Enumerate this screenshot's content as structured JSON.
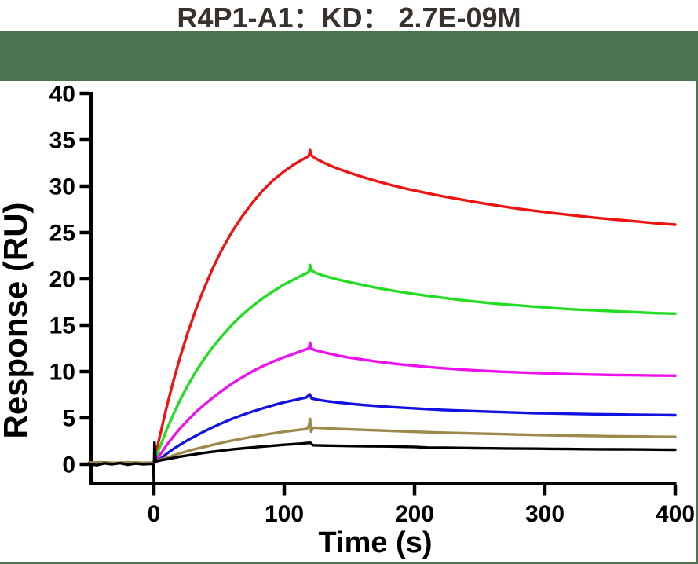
{
  "figure": {
    "title": "R4P1-A1：KD： 2.7E-09M",
    "colors": {
      "header_band": "#4a7350",
      "title_text": "#38322e",
      "axis": "#000000",
      "plot_background": "#ffffff"
    }
  },
  "chart_data": {
    "type": "line",
    "title": "R4P1-A1：KD： 2.7E-09M",
    "sample": "R4P1-A1",
    "kd": "2.7E-09M",
    "xlabel": "Time (s)",
    "ylabel": "Response (RU)",
    "xlim": [
      -50,
      400
    ],
    "ylim": [
      0,
      40
    ],
    "x_ticks": [
      0,
      100,
      200,
      300,
      400
    ],
    "y_ticks": [
      0,
      5,
      10,
      15,
      20,
      25,
      30,
      35,
      40
    ],
    "grid": false,
    "legend": "none",
    "series": [
      {
        "name": "curve-red",
        "color": "#f01111",
        "points": [
          [
            0,
            0.3
          ],
          [
            5,
            3.3
          ],
          [
            10,
            6.3
          ],
          [
            15,
            9.0
          ],
          [
            20,
            11.5
          ],
          [
            26,
            14.2
          ],
          [
            32,
            16.6
          ],
          [
            38,
            18.8
          ],
          [
            45,
            21.1
          ],
          [
            52,
            23.1
          ],
          [
            60,
            25.1
          ],
          [
            68,
            26.8
          ],
          [
            76,
            28.3
          ],
          [
            84,
            29.6
          ],
          [
            92,
            30.7
          ],
          [
            100,
            31.6
          ],
          [
            107,
            32.3
          ],
          [
            113,
            32.8
          ],
          [
            117,
            33.1
          ],
          [
            119,
            33.3
          ],
          [
            119.8,
            33.9
          ],
          [
            121,
            33.3
          ],
          [
            124,
            33.0
          ],
          [
            128,
            32.7
          ],
          [
            134,
            32.3
          ],
          [
            142,
            31.85
          ],
          [
            150,
            31.45
          ],
          [
            160,
            31.0
          ],
          [
            172,
            30.5
          ],
          [
            184,
            30.05
          ],
          [
            196,
            29.65
          ],
          [
            208,
            29.3
          ],
          [
            222,
            28.9
          ],
          [
            236,
            28.55
          ],
          [
            250,
            28.2
          ],
          [
            264,
            27.9
          ],
          [
            278,
            27.6
          ],
          [
            292,
            27.35
          ],
          [
            306,
            27.1
          ],
          [
            322,
            26.85
          ],
          [
            338,
            26.6
          ],
          [
            354,
            26.4
          ],
          [
            370,
            26.2
          ],
          [
            385,
            26.0
          ],
          [
            400,
            25.85
          ]
        ]
      },
      {
        "name": "curve-green",
        "color": "#22dd22",
        "points": [
          [
            0,
            0.25
          ],
          [
            5,
            2.0
          ],
          [
            10,
            3.8
          ],
          [
            15,
            5.4
          ],
          [
            20,
            6.9
          ],
          [
            26,
            8.5
          ],
          [
            32,
            9.95
          ],
          [
            38,
            11.25
          ],
          [
            45,
            12.6
          ],
          [
            52,
            13.8
          ],
          [
            60,
            15.05
          ],
          [
            68,
            16.15
          ],
          [
            76,
            17.1
          ],
          [
            84,
            17.95
          ],
          [
            92,
            18.7
          ],
          [
            100,
            19.4
          ],
          [
            107,
            19.9
          ],
          [
            113,
            20.35
          ],
          [
            117,
            20.6
          ],
          [
            119,
            20.8
          ],
          [
            119.8,
            21.5
          ],
          [
            121,
            20.9
          ],
          [
            124,
            20.65
          ],
          [
            128,
            20.45
          ],
          [
            134,
            20.2
          ],
          [
            142,
            19.9
          ],
          [
            150,
            19.65
          ],
          [
            160,
            19.35
          ],
          [
            172,
            19.0
          ],
          [
            184,
            18.7
          ],
          [
            196,
            18.45
          ],
          [
            208,
            18.2
          ],
          [
            222,
            17.95
          ],
          [
            236,
            17.7
          ],
          [
            250,
            17.5
          ],
          [
            264,
            17.3
          ],
          [
            278,
            17.15
          ],
          [
            292,
            17.0
          ],
          [
            306,
            16.85
          ],
          [
            322,
            16.7
          ],
          [
            338,
            16.6
          ],
          [
            354,
            16.5
          ],
          [
            370,
            16.4
          ],
          [
            385,
            16.3
          ],
          [
            400,
            16.25
          ]
        ]
      },
      {
        "name": "curve-magenta",
        "color": "#ee10ee",
        "points": [
          [
            0,
            0.2
          ],
          [
            5,
            1.1
          ],
          [
            10,
            2.1
          ],
          [
            15,
            3.0
          ],
          [
            20,
            3.85
          ],
          [
            26,
            4.75
          ],
          [
            32,
            5.6
          ],
          [
            38,
            6.35
          ],
          [
            45,
            7.15
          ],
          [
            52,
            7.9
          ],
          [
            60,
            8.7
          ],
          [
            68,
            9.4
          ],
          [
            76,
            10.05
          ],
          [
            84,
            10.6
          ],
          [
            92,
            11.1
          ],
          [
            100,
            11.55
          ],
          [
            107,
            11.9
          ],
          [
            113,
            12.2
          ],
          [
            117,
            12.4
          ],
          [
            119,
            12.55
          ],
          [
            119.8,
            13.1
          ],
          [
            120.8,
            12.45
          ],
          [
            124,
            12.3
          ],
          [
            128,
            12.15
          ],
          [
            134,
            11.95
          ],
          [
            142,
            11.7
          ],
          [
            150,
            11.5
          ],
          [
            160,
            11.3
          ],
          [
            172,
            11.05
          ],
          [
            184,
            10.85
          ],
          [
            196,
            10.68
          ],
          [
            208,
            10.52
          ],
          [
            222,
            10.36
          ],
          [
            236,
            10.22
          ],
          [
            250,
            10.1
          ],
          [
            264,
            10.0
          ],
          [
            278,
            9.92
          ],
          [
            292,
            9.85
          ],
          [
            306,
            9.78
          ],
          [
            322,
            9.72
          ],
          [
            338,
            9.67
          ],
          [
            354,
            9.63
          ],
          [
            370,
            9.6
          ],
          [
            385,
            9.57
          ],
          [
            400,
            9.55
          ]
        ]
      },
      {
        "name": "curve-blue",
        "color": "#1212e0",
        "points": [
          [
            0,
            0.15
          ],
          [
            5,
            0.6
          ],
          [
            10,
            1.15
          ],
          [
            15,
            1.65
          ],
          [
            20,
            2.1
          ],
          [
            26,
            2.6
          ],
          [
            32,
            3.05
          ],
          [
            38,
            3.5
          ],
          [
            45,
            3.98
          ],
          [
            52,
            4.42
          ],
          [
            60,
            4.9
          ],
          [
            68,
            5.32
          ],
          [
            76,
            5.7
          ],
          [
            84,
            6.05
          ],
          [
            92,
            6.38
          ],
          [
            100,
            6.68
          ],
          [
            107,
            6.9
          ],
          [
            113,
            7.08
          ],
          [
            117,
            7.2
          ],
          [
            119.5,
            7.55
          ],
          [
            121,
            7.1
          ],
          [
            124,
            7.0
          ],
          [
            128,
            6.9
          ],
          [
            134,
            6.78
          ],
          [
            142,
            6.65
          ],
          [
            150,
            6.53
          ],
          [
            160,
            6.4
          ],
          [
            172,
            6.27
          ],
          [
            184,
            6.15
          ],
          [
            196,
            6.05
          ],
          [
            208,
            5.96
          ],
          [
            222,
            5.86
          ],
          [
            236,
            5.78
          ],
          [
            250,
            5.7
          ],
          [
            264,
            5.64
          ],
          [
            278,
            5.58
          ],
          [
            292,
            5.52
          ],
          [
            306,
            5.48
          ],
          [
            322,
            5.44
          ],
          [
            338,
            5.4
          ],
          [
            354,
            5.37
          ],
          [
            370,
            5.34
          ],
          [
            385,
            5.32
          ],
          [
            400,
            5.3
          ]
        ]
      },
      {
        "name": "curve-dark-yellow",
        "color": "#9b8a4c",
        "points": [
          [
            -50,
            0.18
          ],
          [
            -40,
            0.22
          ],
          [
            -30,
            0.15
          ],
          [
            -20,
            0.2
          ],
          [
            -10,
            0.16
          ],
          [
            -2,
            0.18
          ],
          [
            0,
            0.25
          ],
          [
            5,
            0.5
          ],
          [
            10,
            0.72
          ],
          [
            15,
            0.95
          ],
          [
            20,
            1.18
          ],
          [
            26,
            1.42
          ],
          [
            32,
            1.65
          ],
          [
            38,
            1.85
          ],
          [
            44,
            2.05
          ],
          [
            50,
            2.25
          ],
          [
            58,
            2.5
          ],
          [
            66,
            2.72
          ],
          [
            74,
            2.92
          ],
          [
            82,
            3.12
          ],
          [
            90,
            3.3
          ],
          [
            98,
            3.47
          ],
          [
            106,
            3.62
          ],
          [
            112,
            3.72
          ],
          [
            117,
            3.8
          ],
          [
            119,
            4.15
          ],
          [
            119.8,
            4.9
          ],
          [
            120.6,
            3.52
          ],
          [
            122,
            3.95
          ],
          [
            126,
            3.92
          ],
          [
            132,
            3.88
          ],
          [
            140,
            3.82
          ],
          [
            150,
            3.76
          ],
          [
            162,
            3.7
          ],
          [
            174,
            3.64
          ],
          [
            186,
            3.58
          ],
          [
            198,
            3.52
          ],
          [
            210,
            3.46
          ],
          [
            224,
            3.4
          ],
          [
            238,
            3.35
          ],
          [
            252,
            3.3
          ],
          [
            266,
            3.25
          ],
          [
            280,
            3.2
          ],
          [
            295,
            3.15
          ],
          [
            310,
            3.11
          ],
          [
            325,
            3.08
          ],
          [
            340,
            3.05
          ],
          [
            355,
            3.02
          ],
          [
            370,
            3.0
          ],
          [
            385,
            2.97
          ],
          [
            400,
            2.95
          ]
        ]
      },
      {
        "name": "curve-black",
        "color": "#000000",
        "points": [
          [
            -50,
            0.05
          ],
          [
            -44,
            -0.1
          ],
          [
            -38,
            0.1
          ],
          [
            -32,
            0.0
          ],
          [
            -26,
            0.12
          ],
          [
            -20,
            -0.05
          ],
          [
            -14,
            0.08
          ],
          [
            -8,
            0.0
          ],
          [
            -3,
            0.05
          ],
          [
            -0.5,
            0.0
          ],
          [
            0,
            -1.95
          ],
          [
            0.4,
            2.35
          ],
          [
            1.5,
            0.3
          ],
          [
            6,
            0.45
          ],
          [
            12,
            0.6
          ],
          [
            20,
            0.82
          ],
          [
            28,
            1.0
          ],
          [
            36,
            1.18
          ],
          [
            44,
            1.33
          ],
          [
            52,
            1.47
          ],
          [
            60,
            1.6
          ],
          [
            70,
            1.74
          ],
          [
            80,
            1.87
          ],
          [
            90,
            1.98
          ],
          [
            100,
            2.1
          ],
          [
            108,
            2.18
          ],
          [
            114,
            2.24
          ],
          [
            118,
            2.3
          ],
          [
            120,
            2.32
          ],
          [
            122,
            2.05
          ],
          [
            130,
            2.02
          ],
          [
            140,
            2.0
          ],
          [
            152,
            1.97
          ],
          [
            164,
            1.95
          ],
          [
            176,
            1.93
          ],
          [
            188,
            1.9
          ],
          [
            200,
            1.87
          ],
          [
            210,
            1.8
          ],
          [
            222,
            1.78
          ],
          [
            234,
            1.76
          ],
          [
            246,
            1.74
          ],
          [
            258,
            1.72
          ],
          [
            270,
            1.7
          ],
          [
            282,
            1.69
          ],
          [
            294,
            1.68
          ],
          [
            306,
            1.66
          ],
          [
            318,
            1.64
          ],
          [
            330,
            1.63
          ],
          [
            342,
            1.62
          ],
          [
            354,
            1.61
          ],
          [
            366,
            1.6
          ],
          [
            378,
            1.59
          ],
          [
            390,
            1.58
          ],
          [
            400,
            1.57
          ]
        ]
      }
    ]
  }
}
